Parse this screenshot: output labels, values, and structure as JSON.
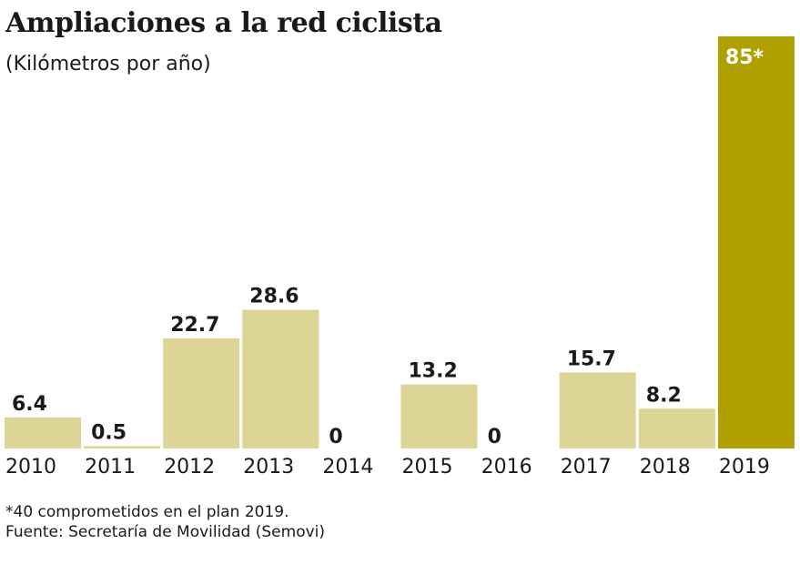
{
  "chart_data": {
    "type": "bar",
    "title": "Ampliaciones a la red ciclista",
    "subtitle": "(Kilómetros por año)",
    "categories": [
      "2010",
      "2011",
      "2012",
      "2013",
      "2014",
      "2015",
      "2016",
      "2017",
      "2018",
      "2019"
    ],
    "values": [
      6.4,
      0.5,
      22.7,
      28.6,
      0,
      13.2,
      0,
      15.7,
      8.2,
      85
    ],
    "data_labels": [
      "6.4",
      "0.5",
      "22.7",
      "28.6",
      "0",
      "13.2",
      "0",
      "15.7",
      "8.2",
      "85*"
    ],
    "ylim": [
      0,
      85
    ],
    "grid": false,
    "colors": {
      "default": "#dcd595",
      "highlight": "#afa000",
      "highlight_label": "#ffffff"
    },
    "highlight_index": 9,
    "footnotes": [
      "*40 comprometidos en el plan 2019.",
      "Fuente: Secretaría de Movilidad (Semovi)"
    ]
  }
}
